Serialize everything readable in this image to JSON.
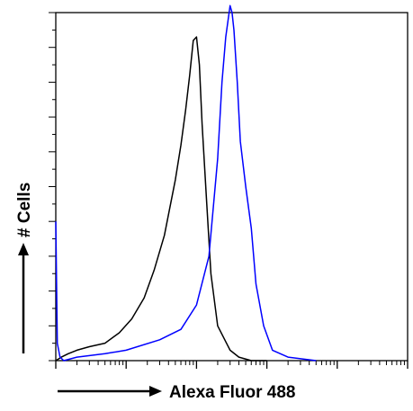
{
  "chart_data": {
    "type": "line",
    "title": "",
    "xlabel": "Alexa Fluor 488",
    "ylabel": "# Cells",
    "x_scale": "log",
    "xlim": [
      1,
      100000
    ],
    "ylim": [
      0,
      100
    ],
    "y_tick_count": 21,
    "grid": false,
    "legend": "none",
    "series": [
      {
        "color": "#000000",
        "x": [
          1,
          1.2,
          1.5,
          2,
          3,
          5,
          8,
          12,
          18,
          25,
          35,
          50,
          60,
          70,
          80,
          90,
          100,
          110,
          120,
          140,
          160,
          200,
          300,
          400,
          600,
          1000
        ],
        "y": [
          0,
          1,
          2,
          3,
          4,
          5,
          8,
          12,
          18,
          26,
          36,
          52,
          62,
          72,
          82,
          92,
          93,
          85,
          68,
          45,
          25,
          10,
          3,
          1,
          0,
          0
        ]
      },
      {
        "color": "#0000ff",
        "x": [
          1,
          1.05,
          1.15,
          1.3,
          2,
          5,
          10,
          30,
          60,
          100,
          150,
          200,
          230,
          260,
          300,
          320,
          340,
          380,
          420,
          500,
          600,
          700,
          900,
          1200,
          2000,
          5000
        ],
        "y": [
          40,
          5,
          1,
          0,
          1,
          2,
          3,
          6,
          9,
          16,
          30,
          58,
          80,
          93,
          102,
          100,
          95,
          80,
          63,
          50,
          38,
          22,
          10,
          3,
          1,
          0
        ]
      }
    ]
  }
}
